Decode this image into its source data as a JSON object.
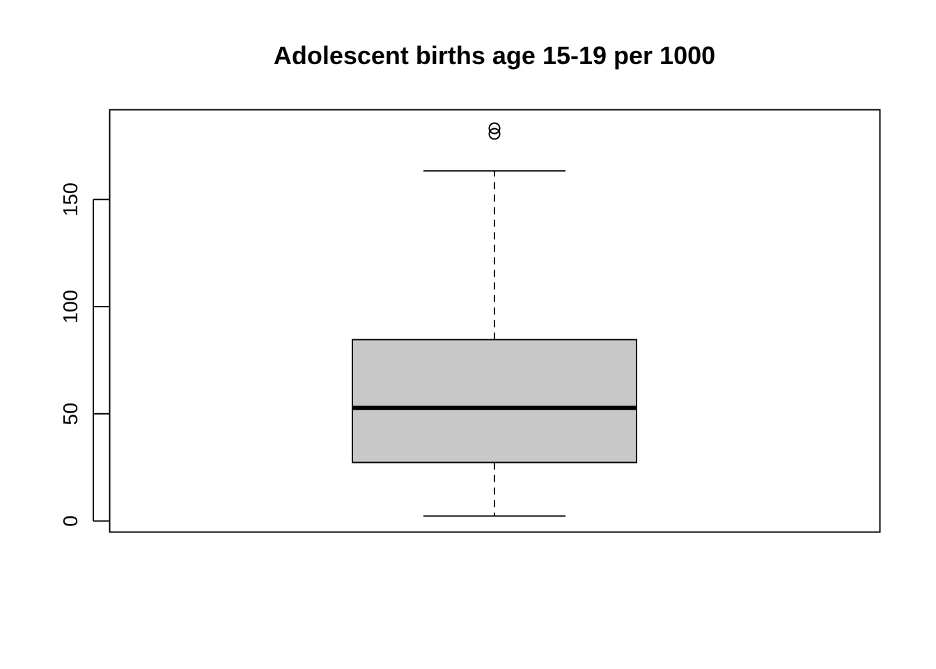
{
  "chart_data": {
    "type": "boxplot",
    "title": "Adolescent births age 15-19 per 1000",
    "xlabel": "",
    "ylabel": "",
    "ylim": [
      -5,
      192
    ],
    "yticks": [
      0,
      50,
      100,
      150
    ],
    "ytick_labels": [
      "0",
      "50",
      "100",
      "150"
    ],
    "grid": false,
    "box": {
      "whisker_low": 2.3,
      "q1": 27.3,
      "median": 52.8,
      "q3": 84.6,
      "whisker_high": 163.3,
      "outliers": [
        180.6,
        183.2
      ]
    },
    "colors": {
      "box_fill": "#c8c8c8",
      "line": "#000000",
      "background": "#ffffff"
    }
  }
}
